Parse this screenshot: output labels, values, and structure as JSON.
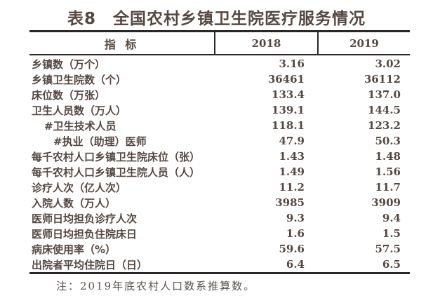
{
  "title": "表8　全国农村乡镇卫生院医疗服务情况",
  "table": {
    "columns": {
      "indicator": "指 标",
      "y2018": "2018",
      "y2019": "2019"
    },
    "rows": [
      {
        "label": "乡镇数（万个）",
        "indent": 0,
        "v2018": "3.16",
        "v2019": "3.02"
      },
      {
        "label": "乡镇卫生院数（个）",
        "indent": 0,
        "v2018": "36461",
        "v2019": "36112"
      },
      {
        "label": "床位数（万张）",
        "indent": 0,
        "v2018": "133.4",
        "v2019": "137.0"
      },
      {
        "label": "卫生人员数（万人）",
        "indent": 0,
        "v2018": "139.1",
        "v2019": "144.5"
      },
      {
        "label": "#卫生技术人员",
        "indent": 1,
        "v2018": "118.1",
        "v2019": "123.2"
      },
      {
        "label": "#执业（助理）医师",
        "indent": 2,
        "v2018": "47.9",
        "v2019": "50.3"
      },
      {
        "label": "每千农村人口乡镇卫生院床位（张）",
        "indent": 0,
        "v2018": "1.43",
        "v2019": "1.48"
      },
      {
        "label": "每千农村人口乡镇卫生院人员（人）",
        "indent": 0,
        "v2018": "1.49",
        "v2019": "1.56"
      },
      {
        "label": "诊疗人次（亿人次）",
        "indent": 0,
        "v2018": "11.2",
        "v2019": "11.7"
      },
      {
        "label": "入院人数（万人）",
        "indent": 0,
        "v2018": "3985",
        "v2019": "3909"
      },
      {
        "label": "医师日均担负诊疗人次",
        "indent": 0,
        "v2018": "9.3",
        "v2019": "9.4"
      },
      {
        "label": "医师日均担负住院床日",
        "indent": 0,
        "v2018": "1.6",
        "v2019": "1.5"
      },
      {
        "label": "病床使用率（%）",
        "indent": 0,
        "v2018": "59.6",
        "v2019": "57.5"
      },
      {
        "label": "出院者平均住院日（日）",
        "indent": 0,
        "v2018": "6.4",
        "v2019": "6.5"
      }
    ]
  },
  "note": "注：2019年底农村人口数系推算数。",
  "colors": {
    "text": "#554741",
    "line": "#2a2726",
    "note_text": "#5a544e",
    "background": "#ffffff"
  },
  "chart_data": {
    "type": "table",
    "title": "表8　全国农村乡镇卫生院医疗服务情况",
    "columns": [
      "指 标",
      "2018",
      "2019"
    ],
    "rows": [
      [
        "乡镇数（万个）",
        "3.16",
        "3.02"
      ],
      [
        "乡镇卫生院数（个）",
        "36461",
        "36112"
      ],
      [
        "床位数（万张）",
        "133.4",
        "137.0"
      ],
      [
        "卫生人员数（万人）",
        "139.1",
        "144.5"
      ],
      [
        "#卫生技术人员",
        "118.1",
        "123.2"
      ],
      [
        "#执业（助理）医师",
        "47.9",
        "50.3"
      ],
      [
        "每千农村人口乡镇卫生院床位（张）",
        "1.43",
        "1.48"
      ],
      [
        "每千农村人口乡镇卫生院人员（人）",
        "1.49",
        "1.56"
      ],
      [
        "诊疗人次（亿人次）",
        "11.2",
        "11.7"
      ],
      [
        "入院人数（万人）",
        "3985",
        "3909"
      ],
      [
        "医师日均担负诊疗人次",
        "9.3",
        "9.4"
      ],
      [
        "医师日均担负住院床日",
        "1.6",
        "1.5"
      ],
      [
        "病床使用率（%）",
        "59.6",
        "57.5"
      ],
      [
        "出院者平均住院日（日）",
        "6.4",
        "6.5"
      ]
    ],
    "footnote": "注：2019年底农村人口数系推算数。"
  }
}
